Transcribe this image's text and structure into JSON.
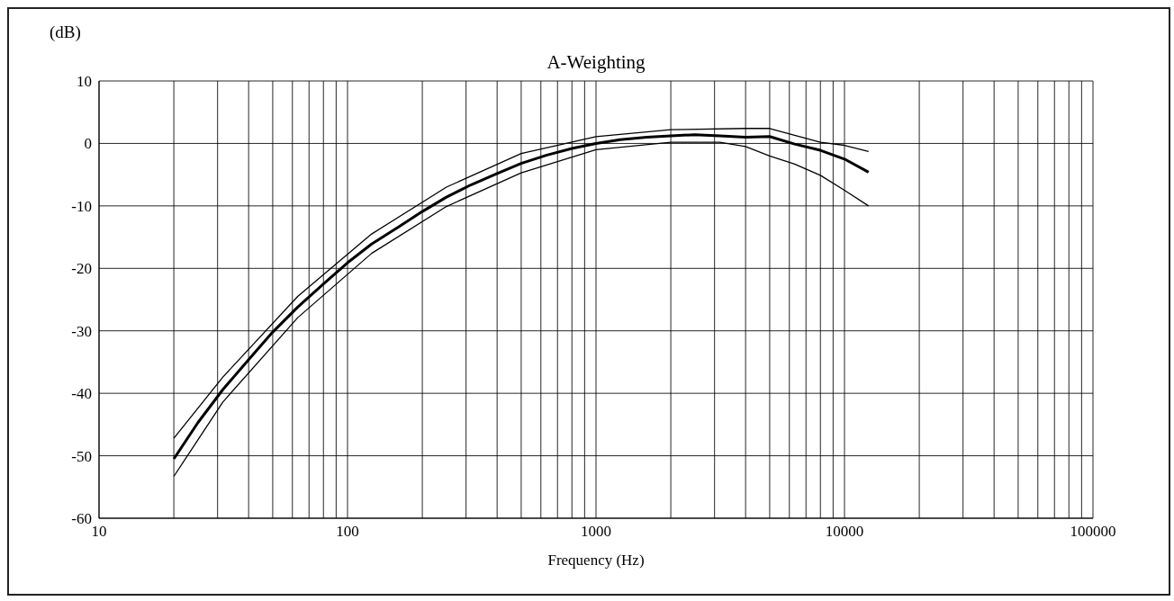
{
  "chart_data": {
    "type": "line",
    "title": "A-Weighting",
    "xlabel": "Frequency (Hz)",
    "ylabel": "(dB)",
    "log": "x",
    "grid": true,
    "line_style": "solid",
    "xlim": [
      10,
      100000
    ],
    "ylim": [
      -60,
      10
    ],
    "xticks": [
      10,
      {
        "value": 20,
        "label": null
      },
      {
        "value": 30,
        "label": null
      },
      {
        "value": 40,
        "label": null
      },
      {
        "value": 50,
        "label": null
      },
      {
        "value": 60,
        "label": null
      },
      {
        "value": 70,
        "label": null
      },
      {
        "value": 80,
        "label": null
      },
      {
        "value": 90,
        "label": null
      },
      100,
      {
        "value": 200,
        "label": null
      },
      {
        "value": 300,
        "label": null
      },
      {
        "value": 400,
        "label": null
      },
      {
        "value": 500,
        "label": null
      },
      {
        "value": 600,
        "label": null
      },
      {
        "value": 700,
        "label": null
      },
      {
        "value": 800,
        "label": null
      },
      {
        "value": 900,
        "label": null
      },
      1000,
      {
        "value": 2000,
        "label": null
      },
      {
        "value": 3000,
        "label": null
      },
      {
        "value": 4000,
        "label": null
      },
      {
        "value": 5000,
        "label": null
      },
      {
        "value": 6000,
        "label": null
      },
      {
        "value": 7000,
        "label": null
      },
      {
        "value": 8000,
        "label": null
      },
      {
        "value": 9000,
        "label": null
      },
      10000,
      {
        "value": 20000,
        "label": null
      },
      {
        "value": 30000,
        "label": null
      },
      {
        "value": 40000,
        "label": null
      },
      {
        "value": 50000,
        "label": null
      },
      {
        "value": 60000,
        "label": null
      },
      {
        "value": 70000,
        "label": null
      },
      {
        "value": 80000,
        "label": null
      },
      {
        "value": 90000,
        "label": null
      },
      100000
    ],
    "yticks": [
      -60,
      -50,
      -40,
      -30,
      -20,
      -10,
      0,
      10
    ],
    "series": [
      {
        "color": "#000000",
        "x": [
          20,
          25,
          31.5,
          40,
          50,
          63,
          80,
          100,
          125,
          160,
          200,
          250,
          315,
          400,
          500,
          630,
          800,
          1000,
          1250,
          1600,
          2000,
          2500,
          3150,
          4000,
          5000,
          6300,
          8000,
          10000,
          12500
        ],
        "values": [
          -50.5,
          -44.7,
          -39.4,
          -34.6,
          -30.2,
          -26.2,
          -22.5,
          -19.1,
          -16.1,
          -13.4,
          -10.9,
          -8.6,
          -6.6,
          -4.8,
          -3.2,
          -1.9,
          -0.8,
          0,
          0.6,
          1,
          1.2,
          1.4,
          1.2,
          1,
          1.1,
          -0.1,
          -1.1,
          -2.5,
          -4.6
        ]
      },
      {
        "color": "#000000",
        "x": [
          20,
          31.5,
          63,
          125,
          250,
          500,
          1000,
          2000,
          4000,
          5000,
          6300,
          8000,
          10000,
          12500
        ],
        "values": [
          -47.2,
          -37.4,
          -24.5,
          -14.5,
          -7,
          -1.6,
          1.1,
          2.2,
          2.4,
          2.4,
          1.3,
          0.2,
          -0.3,
          -1.3
        ]
      },
      {
        "color": "#000000",
        "x": [
          20,
          31.5,
          63,
          125,
          250,
          500,
          1000,
          2000,
          3150,
          4000,
          5000,
          6300,
          8000,
          10000,
          12500
        ],
        "values": [
          -53.3,
          -41.4,
          -27.9,
          -17.6,
          -10.1,
          -4.7,
          -1,
          0.2,
          0.2,
          -0.5,
          -2,
          -3.3,
          -5.1,
          -7.5,
          -10
        ]
      }
    ]
  }
}
